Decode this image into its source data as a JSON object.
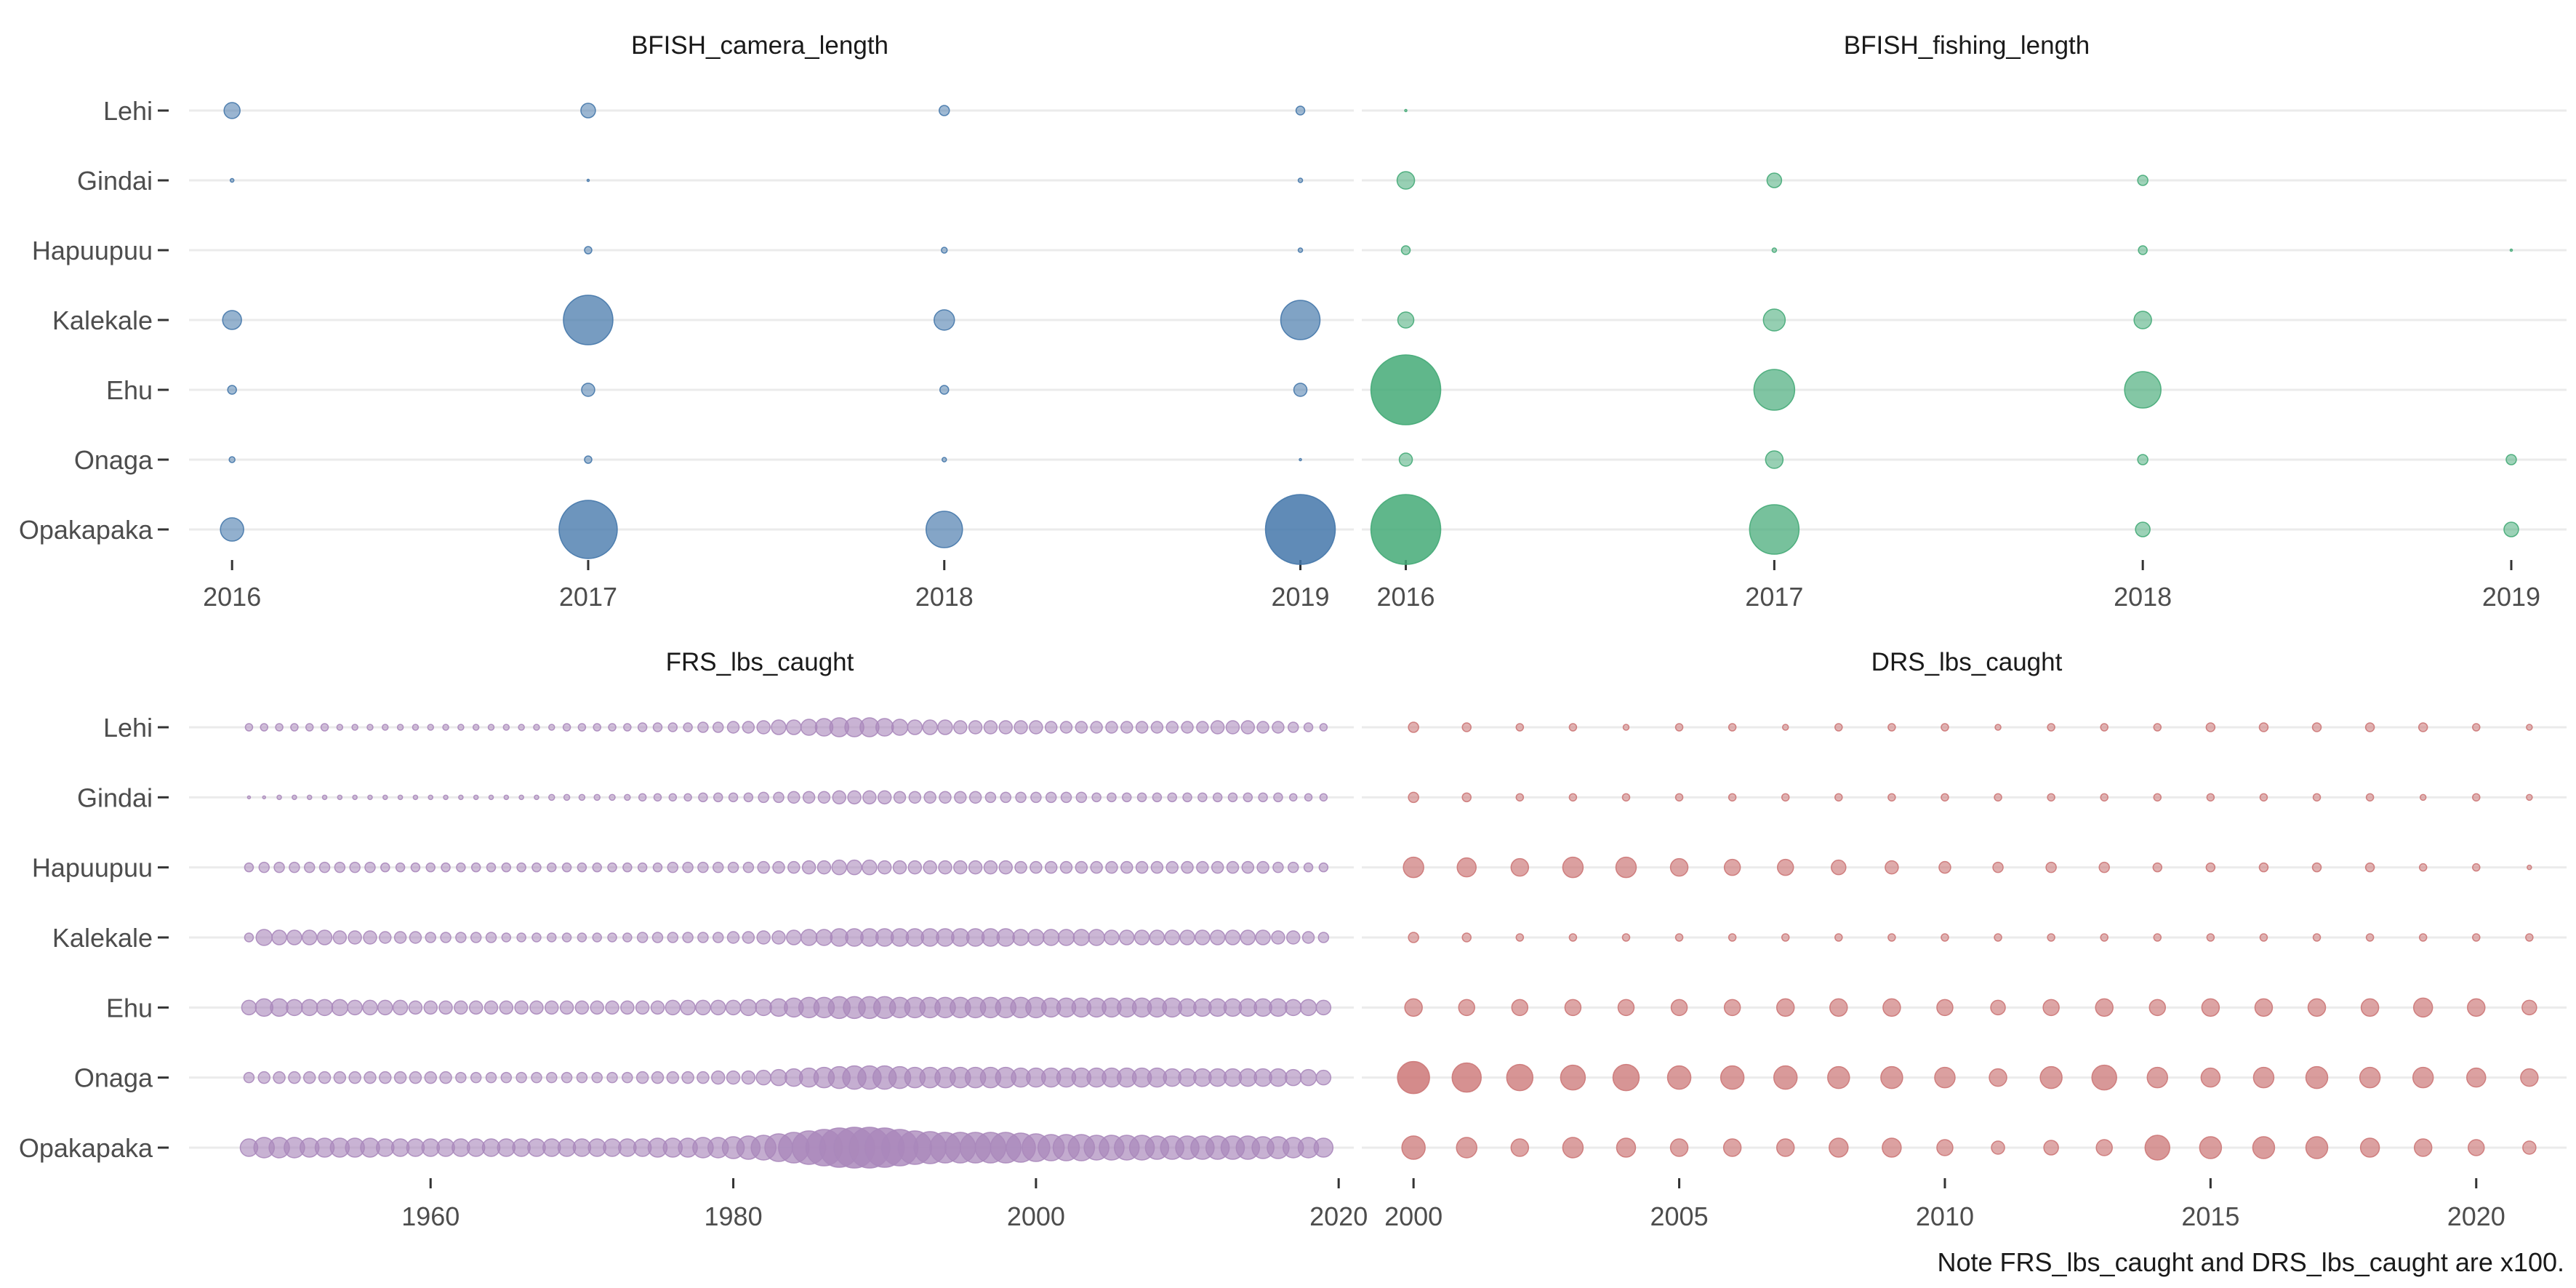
{
  "note": "Note FRS_lbs_caught and DRS_lbs_caught are x100.",
  "chart_data": [
    {
      "type": "scatter",
      "title": "BFISH_camera_length",
      "color": "#4477aa",
      "categories": [
        "Lehi",
        "Gindai",
        "Hapuupuu",
        "Kalekale",
        "Ehu",
        "Onaga",
        "Opakapaka"
      ],
      "x": [
        2016,
        2017,
        2018,
        2019
      ],
      "xlim": [
        2015.92,
        2019.15
      ],
      "xticks": [
        2016,
        2017,
        2018,
        2019
      ],
      "sizes": [
        [
          11,
          10,
          7,
          6
        ],
        [
          2.5,
          1.5,
          0,
          3
        ],
        [
          0,
          5,
          4,
          3
        ],
        [
          13,
          34,
          14,
          27
        ],
        [
          6,
          9,
          6,
          9
        ],
        [
          4,
          5,
          3,
          1.5
        ],
        [
          16,
          40,
          25,
          48
        ]
      ],
      "max_size": 48
    },
    {
      "type": "scatter",
      "title": "BFISH_fishing_length",
      "color": "#44aa77",
      "categories": [
        "Lehi",
        "Gindai",
        "Hapuupuu",
        "Kalekale",
        "Ehu",
        "Onaga",
        "Opakapaka"
      ],
      "x": [
        2016,
        2017,
        2018,
        2019
      ],
      "xlim": [
        2015.92,
        2019.15
      ],
      "xticks": [
        2016,
        2017,
        2018,
        2019
      ],
      "sizes": [
        [
          1.5,
          0,
          0,
          0
        ],
        [
          12,
          10,
          7,
          0
        ],
        [
          6,
          3,
          6,
          1
        ],
        [
          11,
          15,
          12,
          0
        ],
        [
          48,
          28,
          25,
          0
        ],
        [
          9,
          12,
          7,
          7
        ],
        [
          48,
          34,
          10,
          10
        ]
      ],
      "max_size": 48
    },
    {
      "type": "scatter",
      "title": "FRS_lbs_caught",
      "color": "#aa88bb",
      "categories": [
        "Lehi",
        "Gindai",
        "Hapuupuu",
        "Kalekale",
        "Ehu",
        "Onaga",
        "Opakapaka"
      ],
      "x": [
        1948,
        1949,
        1950,
        1951,
        1952,
        1953,
        1954,
        1955,
        1956,
        1957,
        1958,
        1959,
        1960,
        1961,
        1962,
        1963,
        1964,
        1965,
        1966,
        1967,
        1968,
        1969,
        1970,
        1971,
        1972,
        1973,
        1974,
        1975,
        1976,
        1977,
        1978,
        1979,
        1980,
        1981,
        1982,
        1983,
        1984,
        1985,
        1986,
        1987,
        1988,
        1989,
        1990,
        1991,
        1992,
        1993,
        1994,
        1995,
        1996,
        1997,
        1998,
        1999,
        2000,
        2001,
        2002,
        2003,
        2004,
        2005,
        2006,
        2007,
        2008,
        2009,
        2010,
        2011,
        2012,
        2013,
        2014,
        2015,
        2016,
        2017,
        2018,
        2019
      ],
      "xlim": [
        1945,
        2021
      ],
      "xticks": [
        1960,
        1980,
        2000,
        2020
      ],
      "sizes": [
        [
          5,
          5,
          5,
          5,
          5,
          5,
          4,
          4,
          4,
          4,
          4,
          4,
          4,
          4,
          4,
          4,
          4,
          4,
          4,
          4,
          4,
          5,
          5,
          5,
          5,
          5,
          6,
          6,
          6,
          6,
          7,
          7,
          8,
          8,
          9,
          10,
          10,
          11,
          12,
          13,
          13,
          13,
          12,
          11,
          10,
          10,
          10,
          9,
          9,
          9,
          9,
          9,
          9,
          8,
          8,
          8,
          8,
          8,
          8,
          8,
          8,
          8,
          8,
          8,
          9,
          9,
          9,
          8,
          8,
          7,
          6,
          5
        ],
        [
          2,
          2,
          3,
          3,
          3,
          3,
          3,
          3,
          3,
          3,
          3,
          3,
          3,
          3,
          3,
          3,
          3,
          3,
          3,
          3,
          4,
          4,
          4,
          4,
          4,
          4,
          5,
          5,
          5,
          5,
          6,
          6,
          6,
          6,
          7,
          7,
          8,
          8,
          8,
          9,
          9,
          9,
          9,
          8,
          8,
          8,
          8,
          8,
          8,
          7,
          7,
          7,
          7,
          7,
          7,
          7,
          6,
          6,
          6,
          6,
          6,
          6,
          6,
          6,
          6,
          6,
          6,
          6,
          6,
          5,
          5,
          5
        ],
        [
          6,
          7,
          7,
          7,
          7,
          7,
          7,
          7,
          7,
          6,
          6,
          6,
          6,
          6,
          6,
          6,
          6,
          6,
          6,
          6,
          6,
          6,
          6,
          6,
          6,
          6,
          6,
          6,
          7,
          7,
          7,
          7,
          7,
          7,
          8,
          8,
          8,
          9,
          9,
          10,
          10,
          10,
          9,
          9,
          9,
          9,
          9,
          9,
          9,
          9,
          9,
          8,
          8,
          8,
          8,
          8,
          8,
          8,
          8,
          8,
          8,
          8,
          8,
          8,
          8,
          8,
          8,
          8,
          7,
          7,
          6,
          6
        ],
        [
          6,
          11,
          10,
          10,
          10,
          10,
          9,
          9,
          9,
          8,
          8,
          8,
          7,
          7,
          7,
          7,
          7,
          6,
          6,
          6,
          6,
          6,
          6,
          6,
          6,
          6,
          7,
          7,
          7,
          7,
          7,
          7,
          8,
          8,
          9,
          9,
          10,
          11,
          11,
          12,
          12,
          12,
          12,
          12,
          12,
          12,
          12,
          12,
          12,
          12,
          12,
          11,
          11,
          11,
          11,
          11,
          11,
          10,
          10,
          10,
          10,
          10,
          10,
          10,
          10,
          10,
          10,
          10,
          9,
          9,
          8,
          7
        ],
        [
          10,
          12,
          12,
          11,
          11,
          11,
          11,
          10,
          10,
          10,
          10,
          9,
          9,
          9,
          9,
          9,
          9,
          9,
          9,
          9,
          9,
          9,
          9,
          9,
          9,
          9,
          9,
          9,
          10,
          10,
          10,
          10,
          10,
          11,
          11,
          12,
          13,
          14,
          14,
          15,
          15,
          15,
          15,
          14,
          14,
          14,
          14,
          14,
          14,
          14,
          14,
          14,
          14,
          13,
          13,
          13,
          13,
          13,
          13,
          13,
          13,
          13,
          12,
          12,
          12,
          12,
          12,
          12,
          12,
          11,
          11,
          10
        ],
        [
          7,
          8,
          8,
          8,
          8,
          8,
          8,
          8,
          8,
          8,
          8,
          8,
          8,
          8,
          7,
          7,
          7,
          7,
          7,
          7,
          7,
          7,
          7,
          7,
          7,
          7,
          8,
          8,
          8,
          8,
          8,
          9,
          9,
          9,
          10,
          11,
          12,
          13,
          14,
          15,
          16,
          16,
          16,
          15,
          14,
          14,
          14,
          14,
          14,
          14,
          14,
          13,
          13,
          13,
          13,
          13,
          13,
          13,
          13,
          13,
          13,
          12,
          12,
          12,
          12,
          12,
          12,
          12,
          12,
          11,
          11,
          10
        ],
        [
          12,
          14,
          14,
          14,
          13,
          13,
          13,
          13,
          13,
          12,
          12,
          12,
          12,
          12,
          12,
          12,
          12,
          12,
          12,
          12,
          12,
          12,
          12,
          12,
          12,
          12,
          12,
          13,
          13,
          13,
          14,
          14,
          15,
          16,
          17,
          19,
          21,
          23,
          25,
          27,
          28,
          28,
          27,
          25,
          23,
          22,
          21,
          21,
          21,
          21,
          21,
          20,
          19,
          18,
          18,
          18,
          17,
          17,
          17,
          17,
          16,
          16,
          16,
          16,
          16,
          16,
          16,
          15,
          15,
          14,
          14,
          13
        ]
      ],
      "max_size": 28
    },
    {
      "type": "scatter",
      "title": "DRS_lbs_caught",
      "color": "#cc7777",
      "categories": [
        "Lehi",
        "Gindai",
        "Hapuupuu",
        "Kalekale",
        "Ehu",
        "Onaga",
        "Opakapaka"
      ],
      "x": [
        2000,
        2001,
        2002,
        2003,
        2004,
        2005,
        2006,
        2007,
        2008,
        2009,
        2010,
        2011,
        2012,
        2013,
        2014,
        2015,
        2016,
        2017,
        2018,
        2019,
        2020,
        2021
      ],
      "xlim": [
        1999.3,
        2021.7
      ],
      "xticks": [
        2000,
        2005,
        2010,
        2015,
        2020
      ],
      "sizes": [
        [
          7,
          6,
          5,
          5,
          4,
          5,
          5,
          4,
          5,
          5,
          5,
          4,
          5,
          5,
          5,
          6,
          6,
          6,
          6,
          6,
          5,
          4
        ],
        [
          7,
          6,
          5,
          5,
          5,
          5,
          5,
          5,
          5,
          5,
          5,
          5,
          5,
          5,
          5,
          5,
          5,
          5,
          5,
          4,
          5,
          4
        ],
        [
          14,
          13,
          12,
          14,
          14,
          12,
          11,
          11,
          10,
          9,
          8,
          7,
          7,
          7,
          6,
          6,
          6,
          6,
          6,
          5,
          5,
          3
        ],
        [
          7,
          6,
          5,
          5,
          5,
          5,
          5,
          5,
          5,
          5,
          5,
          5,
          5,
          5,
          5,
          5,
          5,
          5,
          5,
          5,
          5,
          5
        ],
        [
          12,
          11,
          11,
          11,
          11,
          11,
          11,
          12,
          12,
          12,
          11,
          10,
          11,
          12,
          11,
          12,
          12,
          12,
          12,
          13,
          12,
          10
        ],
        [
          22,
          20,
          18,
          17,
          18,
          16,
          16,
          16,
          15,
          15,
          14,
          12,
          15,
          17,
          14,
          13,
          14,
          15,
          14,
          14,
          13,
          12
        ],
        [
          16,
          14,
          12,
          14,
          13,
          12,
          12,
          12,
          13,
          13,
          11,
          9,
          10,
          11,
          17,
          15,
          15,
          15,
          13,
          12,
          11,
          9
        ]
      ],
      "max_size": 22
    }
  ]
}
